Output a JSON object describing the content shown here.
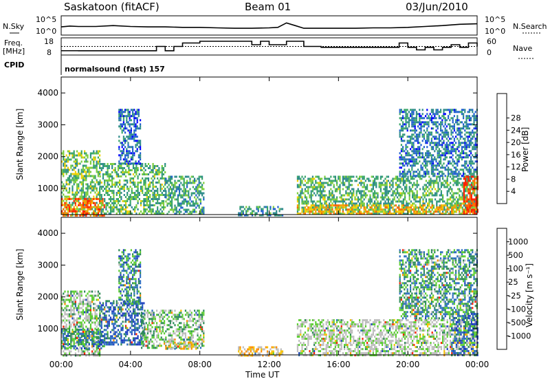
{
  "header": {
    "site": "Saskatoon (fitACF)",
    "beam": "Beam 01",
    "date": "03/Jun/2010"
  },
  "panel_labels": {
    "nsky": "N.Sky",
    "nsearch": "N.Search",
    "freq_line1": "Freq.",
    "freq_line2": "[MHz]",
    "nave": "Nave",
    "cpid": "CPID",
    "cpid_value": "normalsound (fast) 157"
  },
  "noise_axis": {
    "top": "10^5",
    "bottom": "10^0"
  },
  "freq_axis": {
    "top": "18",
    "bottom": "8"
  },
  "nave_axis": {
    "top": "60",
    "bottom": "0"
  },
  "colors": {
    "power_low": "#0000ff",
    "power_high": "#ff0000",
    "vel_pos": "#1f3fbf",
    "vel_neg": "#ff2000",
    "vel_zero": "#bdbdbd"
  },
  "chart_data": [
    {
      "type": "heatmap",
      "ylabel": "Slant Range [km]",
      "ylim": [
        180,
        4500
      ],
      "yticks": [
        "1000",
        "2000",
        "3000",
        "4000"
      ],
      "xlabel": "Time UT",
      "xlim_hours": [
        0,
        24
      ],
      "xticks": [
        "00:00",
        "04:00",
        "08:00",
        "12:00",
        "16:00",
        "20:00",
        "00:00"
      ],
      "colorbar": {
        "label": "Power [dB]",
        "ticks": [
          "4",
          "8",
          "12",
          "16",
          "20",
          "24",
          "28"
        ]
      },
      "regions": [
        {
          "t0": 0.0,
          "t1": 2.2,
          "r0": 180,
          "r1": 2200,
          "level": 0.45
        },
        {
          "t0": 0.0,
          "t1": 2.5,
          "r0": 180,
          "r1": 700,
          "level": 0.85
        },
        {
          "t0": 2.2,
          "t1": 6.0,
          "r0": 180,
          "r1": 1800,
          "level": 0.4
        },
        {
          "t0": 3.3,
          "t1": 4.6,
          "r0": 1800,
          "r1": 3500,
          "level": 0.2
        },
        {
          "t0": 6.0,
          "t1": 8.2,
          "r0": 180,
          "r1": 1400,
          "level": 0.35
        },
        {
          "t0": 10.2,
          "t1": 12.8,
          "r0": 180,
          "r1": 450,
          "level": 0.3
        },
        {
          "t0": 13.6,
          "t1": 24.0,
          "r0": 180,
          "r1": 1400,
          "level": 0.4
        },
        {
          "t0": 13.6,
          "t1": 24.0,
          "r0": 180,
          "r1": 500,
          "level": 0.7
        },
        {
          "t0": 19.5,
          "t1": 24.0,
          "r0": 1400,
          "r1": 3500,
          "level": 0.25
        },
        {
          "t0": 23.2,
          "t1": 24.0,
          "r0": 200,
          "r1": 1400,
          "level": 0.95
        }
      ]
    },
    {
      "type": "heatmap",
      "ylabel": "Slant Range [km]",
      "ylim": [
        180,
        4500
      ],
      "yticks": [
        "1000",
        "2000",
        "3000",
        "4000"
      ],
      "xlabel": "Time UT",
      "xlim_hours": [
        0,
        24
      ],
      "xticks": [
        "00:00",
        "04:00",
        "08:00",
        "12:00",
        "16:00",
        "20:00",
        "00:00"
      ],
      "colorbar": {
        "label": "Velocity [m s⁻¹]",
        "ticks": [
          "1000",
          "500",
          "100",
          "25",
          "-25",
          "-100",
          "-500",
          "-1000"
        ]
      },
      "regions": [
        {
          "t0": 0.0,
          "t1": 2.2,
          "r0": 180,
          "r1": 2200,
          "level": 0.45
        },
        {
          "t0": 0.0,
          "t1": 2.5,
          "r0": 400,
          "r1": 1000,
          "level": 0.25
        },
        {
          "t0": 2.2,
          "t1": 4.8,
          "r0": 500,
          "r1": 1900,
          "level": 0.15
        },
        {
          "t0": 3.3,
          "t1": 4.6,
          "r0": 1800,
          "r1": 3500,
          "level": 0.25
        },
        {
          "t0": 4.6,
          "t1": 8.2,
          "r0": 400,
          "r1": 1600,
          "level": 0.4
        },
        {
          "t0": 6.0,
          "t1": 7.8,
          "r0": 400,
          "r1": 600,
          "level": 0.7
        },
        {
          "t0": 10.2,
          "t1": 12.8,
          "r0": 180,
          "r1": 450,
          "level": 0.7
        },
        {
          "t0": 13.6,
          "t1": 24.0,
          "r0": 180,
          "r1": 1300,
          "level": 0.5
        },
        {
          "t0": 19.5,
          "t1": 24.0,
          "r0": 1300,
          "r1": 3500,
          "level": 0.3
        },
        {
          "t0": 22.5,
          "t1": 24.0,
          "r0": 200,
          "r1": 1500,
          "level": 0.15
        }
      ]
    }
  ],
  "noise_series": {
    "hours": [
      0,
      0.5,
      1,
      2,
      3,
      4,
      5,
      6,
      7,
      8,
      9,
      10,
      11,
      12,
      12.5,
      13,
      13.5,
      14,
      15,
      16,
      17,
      18,
      19,
      20,
      21,
      22,
      23,
      24
    ],
    "nsky": [
      0.45,
      0.55,
      0.5,
      0.5,
      0.6,
      0.5,
      0.45,
      0.45,
      0.4,
      0.4,
      0.35,
      0.3,
      0.3,
      0.35,
      0.4,
      0.9,
      0.6,
      0.3,
      0.3,
      0.3,
      0.3,
      0.35,
      0.35,
      0.4,
      0.5,
      0.6,
      0.75,
      0.8
    ]
  },
  "freq_series": {
    "hours": [
      0,
      1,
      2,
      3,
      4,
      5,
      5.5,
      6,
      6.5,
      7,
      8,
      9,
      10,
      10.5,
      11,
      11.5,
      12,
      13,
      13.5,
      14,
      15,
      16,
      17,
      18,
      19,
      19.5,
      20,
      20.5,
      21,
      21.5,
      22,
      22.5,
      23,
      23.5,
      24
    ],
    "freq": [
      10.5,
      10.5,
      10.5,
      10.5,
      10.5,
      10.5,
      13,
      10.5,
      13,
      15,
      16,
      16,
      16,
      16,
      14,
      16,
      14,
      16,
      16,
      13,
      12.5,
      12.5,
      12.5,
      12.5,
      12.5,
      15,
      12.5,
      11,
      12.5,
      11,
      12.5,
      14,
      12.5,
      15,
      13
    ],
    "nave": [
      30,
      30,
      30,
      30,
      30,
      30,
      30,
      30,
      30,
      30,
      30,
      30,
      30,
      30,
      30,
      30,
      30,
      30,
      30,
      30,
      30,
      30,
      30,
      30,
      30,
      30,
      30,
      30,
      30,
      30,
      30,
      30,
      30,
      30,
      30
    ]
  }
}
